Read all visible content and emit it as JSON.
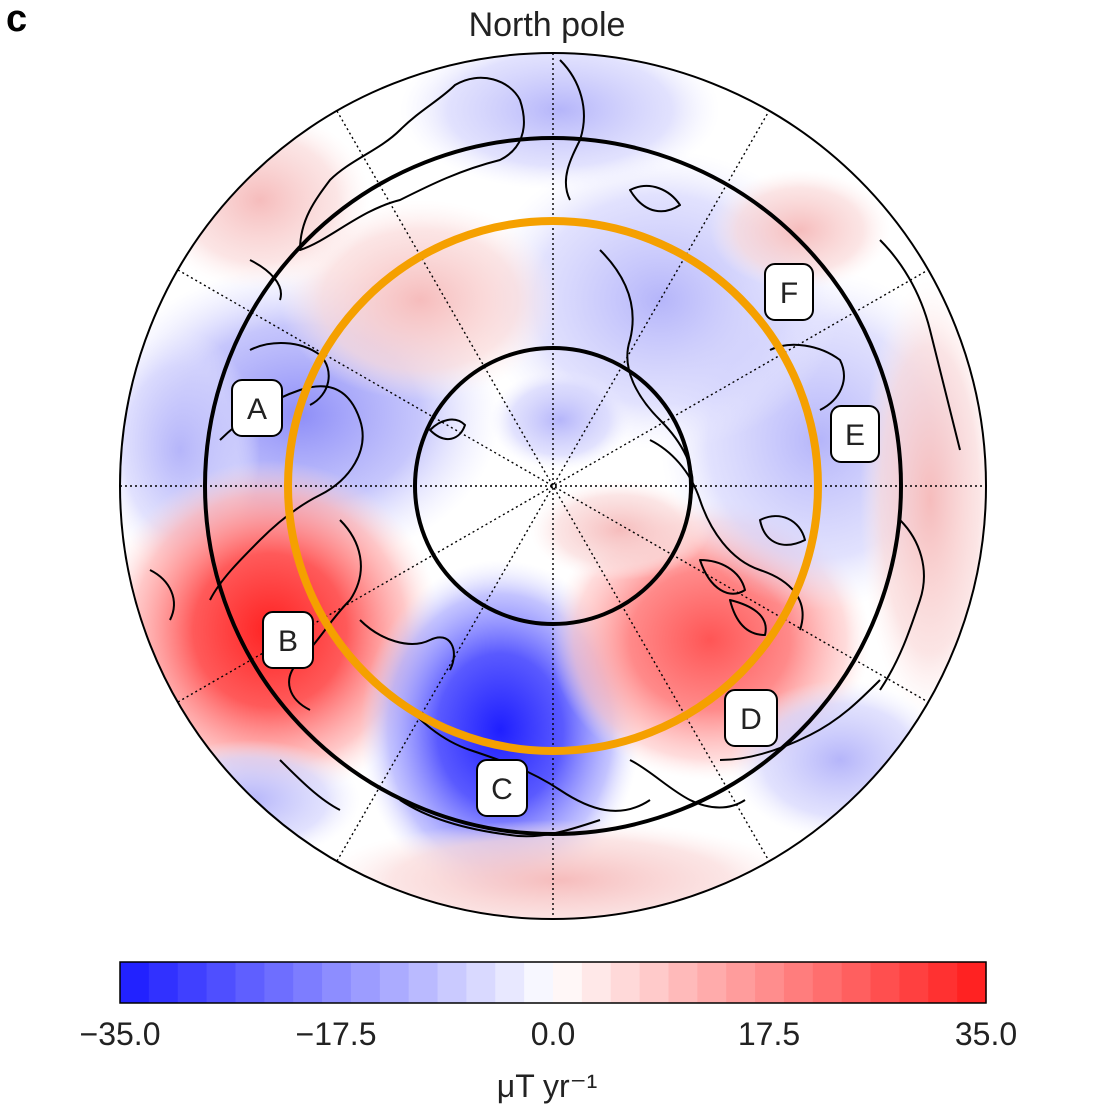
{
  "panel_letter": "c",
  "title": "North pole",
  "colors": {
    "blue": "#1a1aff",
    "red": "#ff1a1a",
    "white": "#ffffff",
    "orange": "#f5a000",
    "black": "#000000"
  },
  "regions": [
    {
      "label": "A",
      "name": "region-a",
      "fill": "#c9c9fb"
    },
    {
      "label": "B",
      "name": "region-b",
      "fill": "#ff3535"
    },
    {
      "label": "C",
      "name": "region-c",
      "fill": "#3535ff"
    },
    {
      "label": "D",
      "name": "region-d",
      "fill": "#ff6c6c"
    },
    {
      "label": "E",
      "name": "region-e",
      "fill": "#d4d4ff"
    },
    {
      "label": "F",
      "name": "region-f",
      "fill": "#eeeeff"
    }
  ],
  "colorbar": {
    "min": -35.0,
    "max": 35.0,
    "steps": 30,
    "ticks": [
      "−35.0",
      "−17.5",
      "0.0",
      "17.5",
      "35.0"
    ],
    "unit": "μT yr⁻¹"
  }
}
